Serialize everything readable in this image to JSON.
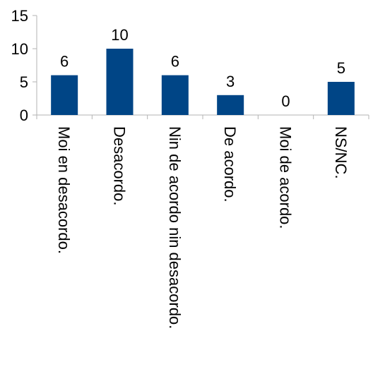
{
  "chart_data": {
    "type": "bar",
    "categories": [
      "Moi en desacordo.",
      "Desacordo.",
      "Nin de acordo nin desacordo.",
      "De acordo.",
      "Moi de acordo.",
      "NS/NC."
    ],
    "values": [
      6,
      10,
      6,
      3,
      0,
      5
    ],
    "title": "",
    "xlabel": "",
    "ylabel": "",
    "ylim": [
      0,
      15
    ],
    "yticks": [
      0,
      5,
      10,
      15
    ],
    "grid": false,
    "legend": "none",
    "data_labels": true,
    "colors": {
      "bar": "#004586",
      "axis": "#b3b3b3",
      "text": "#000000"
    }
  }
}
